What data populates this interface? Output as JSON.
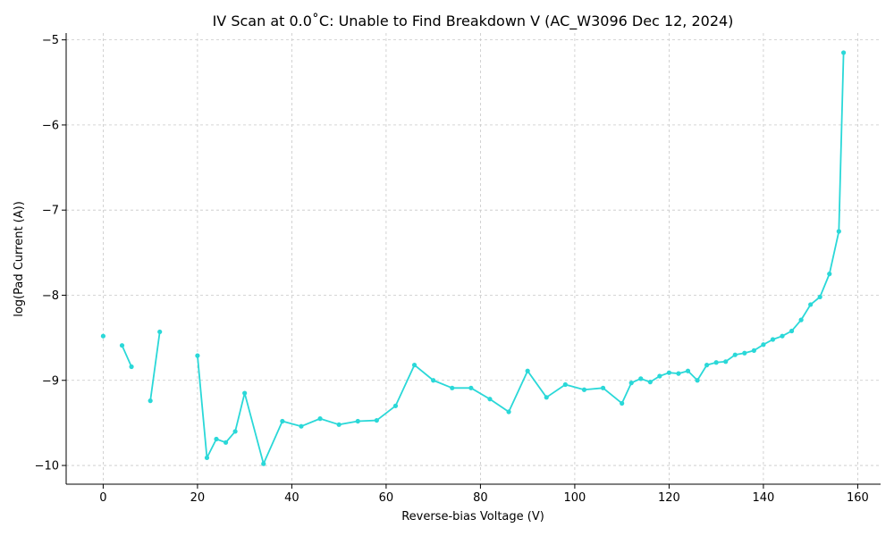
{
  "chart_data": {
    "type": "line",
    "title": "IV Scan at 0.0˚C: Unable to Find Breakdown V (AC_W3096 Dec 12, 2024)",
    "xlabel": "Reverse-bias Voltage (V)",
    "ylabel": "log(Pad Current (A))",
    "xlim": [
      -7.85,
      164.85
    ],
    "ylim": [
      -10.22,
      -4.92
    ],
    "xticks": [
      0,
      20,
      40,
      60,
      80,
      100,
      120,
      140,
      160
    ],
    "yticks": [
      -10,
      -9,
      -8,
      -7,
      -6,
      -5
    ],
    "xtick_labels": [
      "0",
      "20",
      "40",
      "60",
      "80",
      "100",
      "120",
      "140",
      "160"
    ],
    "ytick_labels": [
      "−10",
      "−9",
      "−8",
      "−7",
      "−6",
      "−5"
    ],
    "grid": true,
    "series_color": "#2ad8d8",
    "segments": [
      [
        [
          0,
          -8.48
        ]
      ],
      [
        [
          4,
          -8.59
        ],
        [
          6,
          -8.84
        ]
      ],
      [
        [
          10,
          -9.24
        ],
        [
          12,
          -8.43
        ]
      ],
      [
        [
          20,
          -8.71
        ],
        [
          22,
          -9.91
        ],
        [
          24,
          -9.69
        ],
        [
          26,
          -9.73
        ],
        [
          28,
          -9.6
        ],
        [
          30,
          -9.15
        ],
        [
          34,
          -9.98
        ],
        [
          38,
          -9.48
        ],
        [
          42,
          -9.54
        ],
        [
          46,
          -9.45
        ],
        [
          50,
          -9.52
        ],
        [
          54,
          -9.48
        ],
        [
          58,
          -9.47
        ],
        [
          62,
          -9.3
        ],
        [
          66,
          -8.82
        ],
        [
          70,
          -9.0
        ],
        [
          74,
          -9.09
        ],
        [
          78,
          -9.09
        ],
        [
          82,
          -9.22
        ],
        [
          86,
          -9.37
        ],
        [
          90,
          -8.89
        ],
        [
          94,
          -9.2
        ],
        [
          98,
          -9.05
        ],
        [
          102,
          -9.11
        ],
        [
          106,
          -9.09
        ],
        [
          110,
          -9.27
        ],
        [
          112,
          -9.03
        ],
        [
          114,
          -8.98
        ],
        [
          116,
          -9.02
        ],
        [
          118,
          -8.95
        ],
        [
          120,
          -8.91
        ],
        [
          122,
          -8.92
        ],
        [
          124,
          -8.89
        ],
        [
          126,
          -9.0
        ],
        [
          128,
          -8.82
        ],
        [
          130,
          -8.79
        ],
        [
          132,
          -8.78
        ],
        [
          134,
          -8.7
        ],
        [
          136,
          -8.68
        ],
        [
          138,
          -8.65
        ],
        [
          140,
          -8.58
        ],
        [
          142,
          -8.52
        ],
        [
          144,
          -8.48
        ],
        [
          146,
          -8.42
        ],
        [
          148,
          -8.29
        ],
        [
          150,
          -8.11
        ],
        [
          152,
          -8.02
        ],
        [
          154,
          -7.75
        ],
        [
          156,
          -7.25
        ],
        [
          157,
          -5.15
        ]
      ]
    ]
  }
}
